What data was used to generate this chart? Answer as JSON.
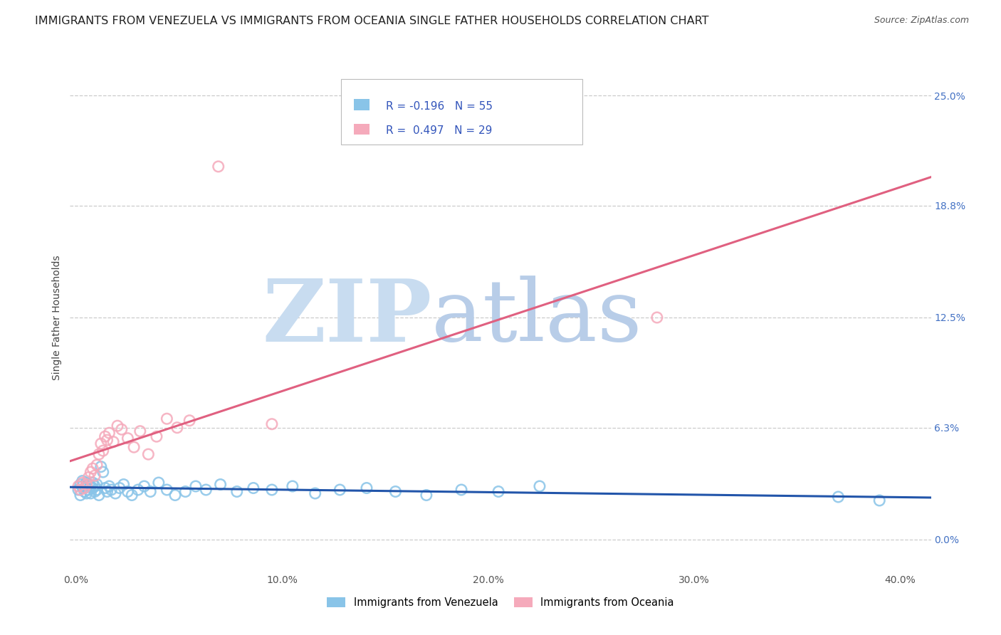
{
  "title": "IMMIGRANTS FROM VENEZUELA VS IMMIGRANTS FROM OCEANIA SINGLE FATHER HOUSEHOLDS CORRELATION CHART",
  "source": "Source: ZipAtlas.com",
  "ylabel": "Single Father Households",
  "xlabel_ticks": [
    "0.0%",
    "10.0%",
    "20.0%",
    "30.0%",
    "40.0%"
  ],
  "xlabel_vals": [
    0.0,
    0.1,
    0.2,
    0.3,
    0.4
  ],
  "right_ytick_labels": [
    "25.0%",
    "18.8%",
    "12.5%",
    "6.3%",
    "0.0%"
  ],
  "right_ytick_vals": [
    0.25,
    0.188,
    0.125,
    0.063,
    0.0
  ],
  "xlim": [
    -0.003,
    0.415
  ],
  "ylim": [
    -0.018,
    0.268
  ],
  "legend1_label": "Immigrants from Venezuela",
  "legend2_label": "Immigrants from Oceania",
  "R_venezuela": -0.196,
  "N_venezuela": 55,
  "R_oceania": 0.497,
  "N_oceania": 29,
  "color_venezuela": "#89C4E8",
  "color_oceania": "#F5AABB",
  "line_color_venezuela": "#2255AA",
  "line_color_oceania": "#E06080",
  "watermark_zip": "ZIP",
  "watermark_atlas": "atlas",
  "watermark_color_zip": "#C8DCF0",
  "watermark_color_atlas": "#B0C8E8",
  "title_fontsize": 11.5,
  "axis_label_fontsize": 10,
  "tick_fontsize": 10,
  "right_tick_color": "#4472C4",
  "venezuela_x": [
    0.001,
    0.002,
    0.002,
    0.003,
    0.003,
    0.004,
    0.004,
    0.005,
    0.005,
    0.006,
    0.006,
    0.007,
    0.007,
    0.008,
    0.008,
    0.009,
    0.009,
    0.01,
    0.01,
    0.011,
    0.012,
    0.013,
    0.014,
    0.015,
    0.016,
    0.017,
    0.019,
    0.021,
    0.023,
    0.025,
    0.027,
    0.03,
    0.033,
    0.036,
    0.04,
    0.044,
    0.048,
    0.053,
    0.058,
    0.063,
    0.07,
    0.078,
    0.086,
    0.095,
    0.105,
    0.116,
    0.128,
    0.141,
    0.155,
    0.17,
    0.187,
    0.205,
    0.225,
    0.37,
    0.39
  ],
  "venezuela_y": [
    0.028,
    0.031,
    0.025,
    0.03,
    0.033,
    0.027,
    0.029,
    0.032,
    0.026,
    0.031,
    0.028,
    0.03,
    0.026,
    0.029,
    0.032,
    0.027,
    0.03,
    0.028,
    0.031,
    0.025,
    0.041,
    0.038,
    0.029,
    0.027,
    0.03,
    0.028,
    0.026,
    0.029,
    0.031,
    0.027,
    0.025,
    0.028,
    0.03,
    0.027,
    0.032,
    0.028,
    0.025,
    0.027,
    0.03,
    0.028,
    0.031,
    0.027,
    0.029,
    0.028,
    0.03,
    0.026,
    0.028,
    0.029,
    0.027,
    0.025,
    0.028,
    0.027,
    0.03,
    0.024,
    0.022
  ],
  "oceania_x": [
    0.001,
    0.002,
    0.003,
    0.004,
    0.005,
    0.006,
    0.007,
    0.008,
    0.009,
    0.01,
    0.011,
    0.012,
    0.013,
    0.014,
    0.015,
    0.016,
    0.018,
    0.02,
    0.022,
    0.025,
    0.028,
    0.031,
    0.035,
    0.039,
    0.044,
    0.049,
    0.055,
    0.095,
    0.282
  ],
  "oceania_y": [
    0.03,
    0.028,
    0.032,
    0.029,
    0.031,
    0.035,
    0.038,
    0.04,
    0.036,
    0.042,
    0.048,
    0.054,
    0.05,
    0.058,
    0.056,
    0.06,
    0.055,
    0.064,
    0.062,
    0.057,
    0.052,
    0.061,
    0.048,
    0.058,
    0.068,
    0.063,
    0.067,
    0.065,
    0.125
  ]
}
